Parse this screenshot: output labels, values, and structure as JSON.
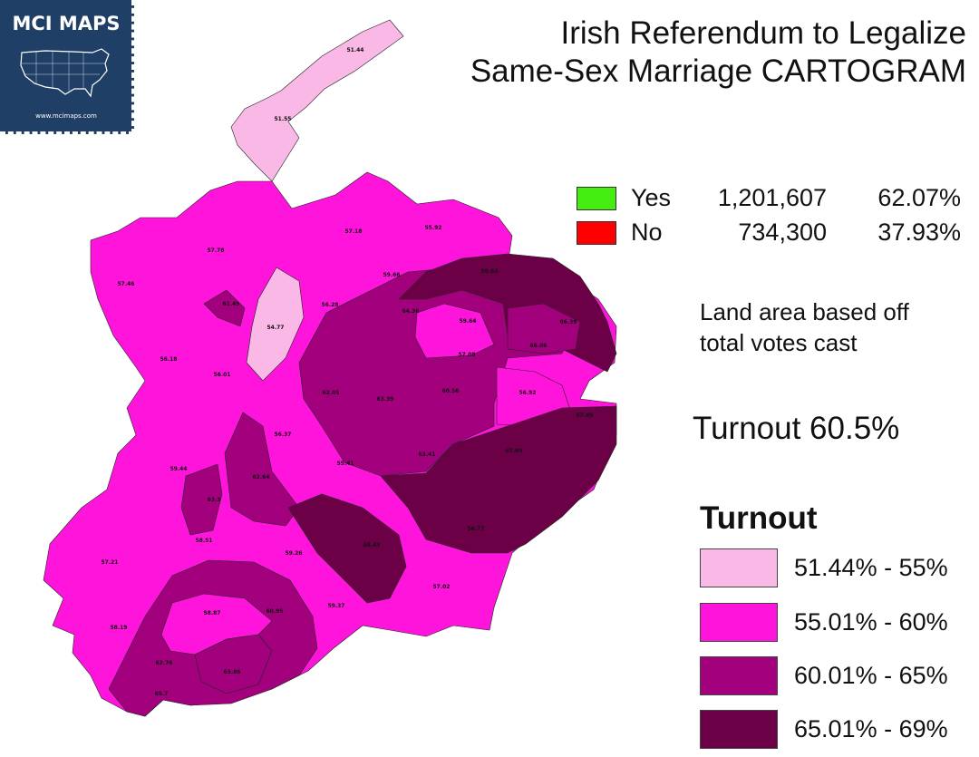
{
  "logo": {
    "title": "MCI MAPS",
    "url": "www.mcimaps.com"
  },
  "title": {
    "line1": "Irish Referendum to Legalize",
    "line2": "Same-Sex Marriage CARTOGRAM"
  },
  "results": [
    {
      "label": "Yes",
      "votes": "1,201,607",
      "percent": "62.07%",
      "color": "#44ee11"
    },
    {
      "label": "No",
      "votes": "734,300",
      "percent": "37.93%",
      "color": "#ff0000"
    }
  ],
  "note": {
    "line1": "Land area based off",
    "line2": "total votes cast"
  },
  "turnout_total": "Turnout 60.5%",
  "legend": {
    "title": "Turnout",
    "items": [
      {
        "label": "51.44% - 55%",
        "color": "#fab8e6"
      },
      {
        "label": "55.01% - 60%",
        "color": "#ff14dc"
      },
      {
        "label": "60.01% - 65%",
        "color": "#a3007e"
      },
      {
        "label": "65.01% - 69%",
        "color": "#6c0047"
      }
    ]
  },
  "map_labels": [
    "51.44",
    "51.55",
    "57.78",
    "57.18",
    "55.92",
    "57.46",
    "61.49",
    "54.77",
    "59.66",
    "56.28",
    "59.63",
    "64.36",
    "56.18",
    "59.64",
    "66.39",
    "56.01",
    "66.06",
    "57.08",
    "62.05",
    "63.39",
    "60.56",
    "56.92",
    "57.05",
    "56.37",
    "55.41",
    "63.41",
    "67.69",
    "59.44",
    "62.64",
    "63.3",
    "58.51",
    "59.26",
    "58.43",
    "56.77",
    "57.21",
    "57.02",
    "59.37",
    "58.87",
    "60.95",
    "58.19",
    "62.76",
    "63.86",
    "65.7"
  ]
}
